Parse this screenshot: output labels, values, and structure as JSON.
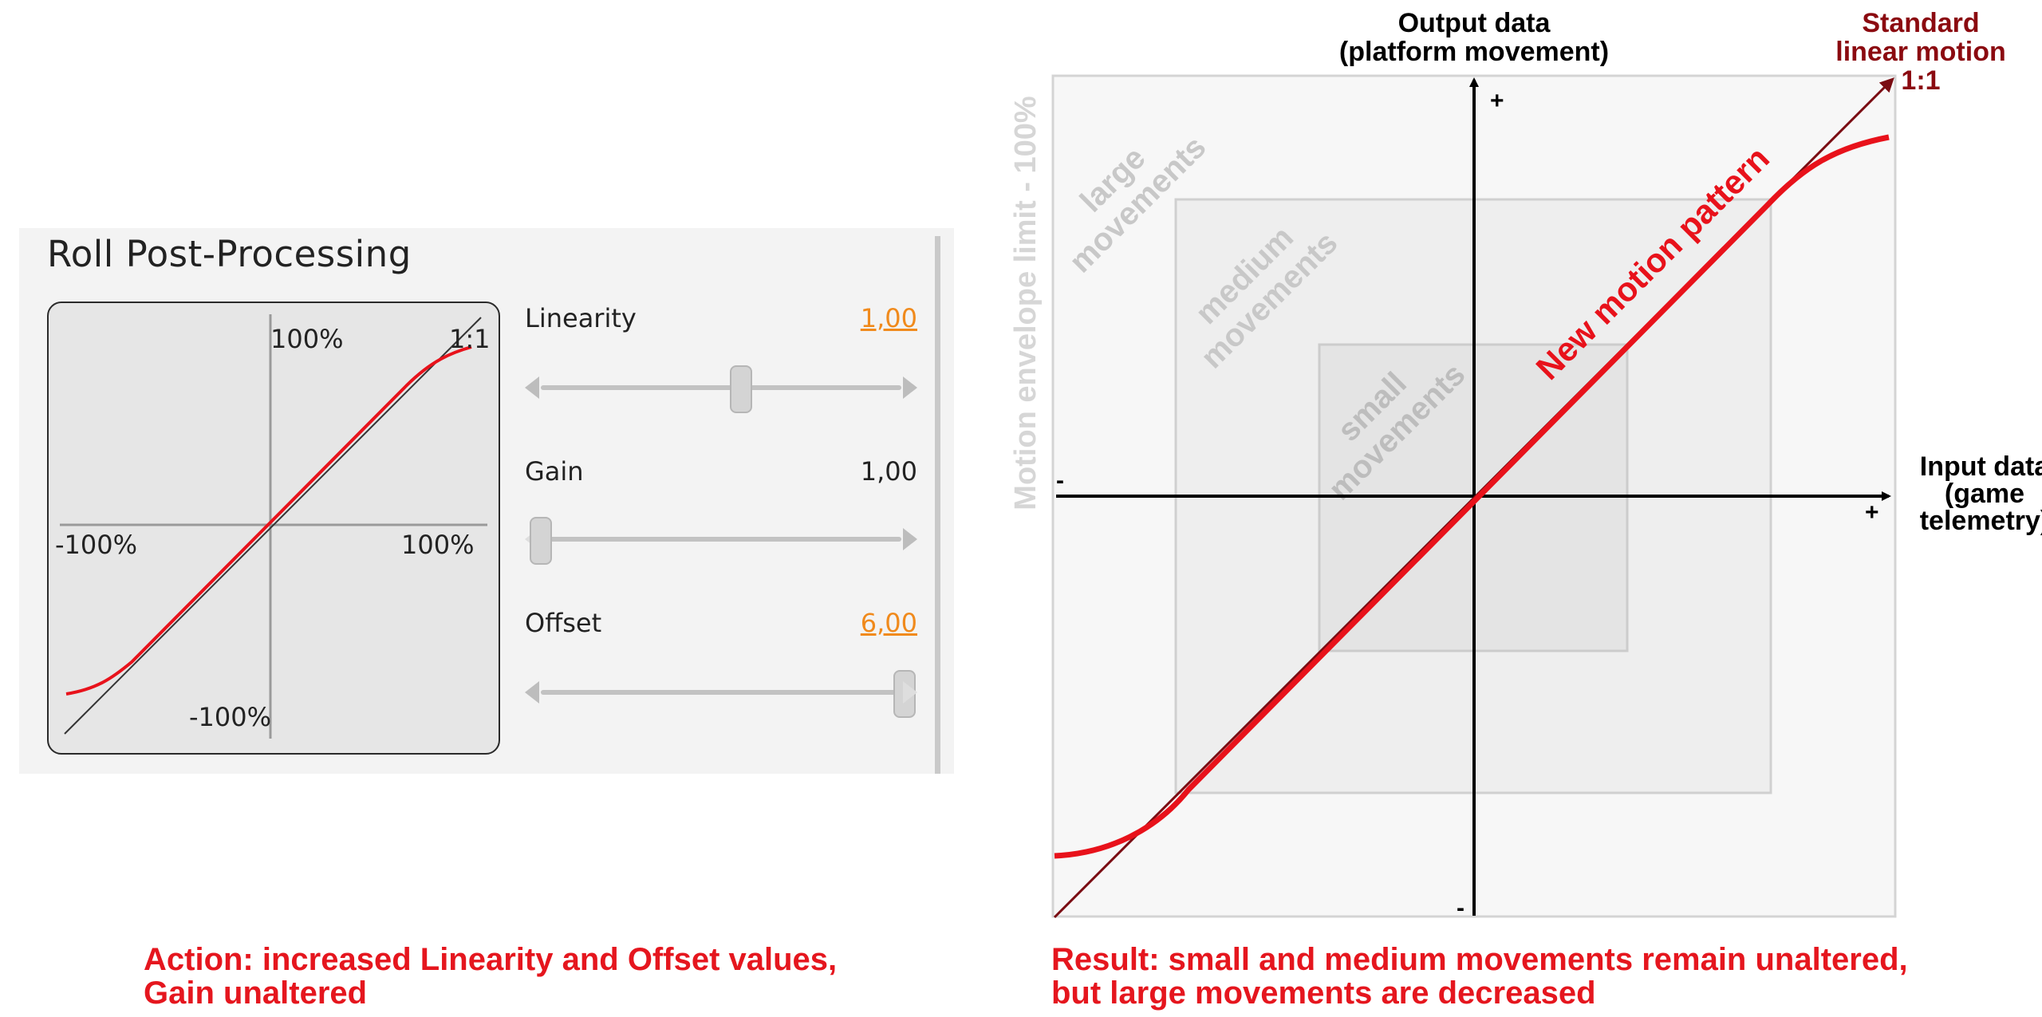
{
  "panel": {
    "title": "Roll Post-Processing",
    "preview": {
      "y_top": "100%",
      "y_bottom": "-100%",
      "x_left": "-100%",
      "x_right": "100%",
      "ratio": "1:1"
    },
    "controls": [
      {
        "label": "Linearity",
        "value": "1,00",
        "changed": true,
        "slider_fraction": 0.55
      },
      {
        "label": "Gain",
        "value": "1,00",
        "changed": false,
        "slider_fraction": 0.0
      },
      {
        "label": "Offset",
        "value": "6,00",
        "changed": true,
        "slider_fraction": 1.0
      }
    ]
  },
  "captions": {
    "action_line1": "Action: increased Linearity and Offset values,",
    "action_line2": "Gain unaltered",
    "result_line1": "Result: small and medium movements remain unaltered,",
    "result_line2": "but large movements are decreased"
  },
  "diagram": {
    "y_axis_title_1": "Output data",
    "y_axis_title_2": "(platform movement)",
    "x_axis_title_1": "Input data",
    "x_axis_title_2": "(game",
    "x_axis_title_3": "telemetry)",
    "linear_label_1": "Standard",
    "linear_label_2": "linear motion",
    "linear_label_3": "1:1",
    "envelope_label": "Motion envelope limit - 100%",
    "zone_large_1": "large",
    "zone_large_2": "movements",
    "zone_medium_1": "medium",
    "zone_medium_2": "movements",
    "zone_small_1": "small",
    "zone_small_2": "movements",
    "curve_label": "New motion pattern",
    "plus_y": "+",
    "minus_y": "-",
    "plus_x": "+",
    "minus_x": "-"
  },
  "colors": {
    "curve": "#e8121b",
    "linear": "#7a0c12",
    "linear_label": "#8b0a10",
    "changed_value": "#f08a1c",
    "caption": "#e5161e",
    "zone_text": "#c8c8c8"
  }
}
